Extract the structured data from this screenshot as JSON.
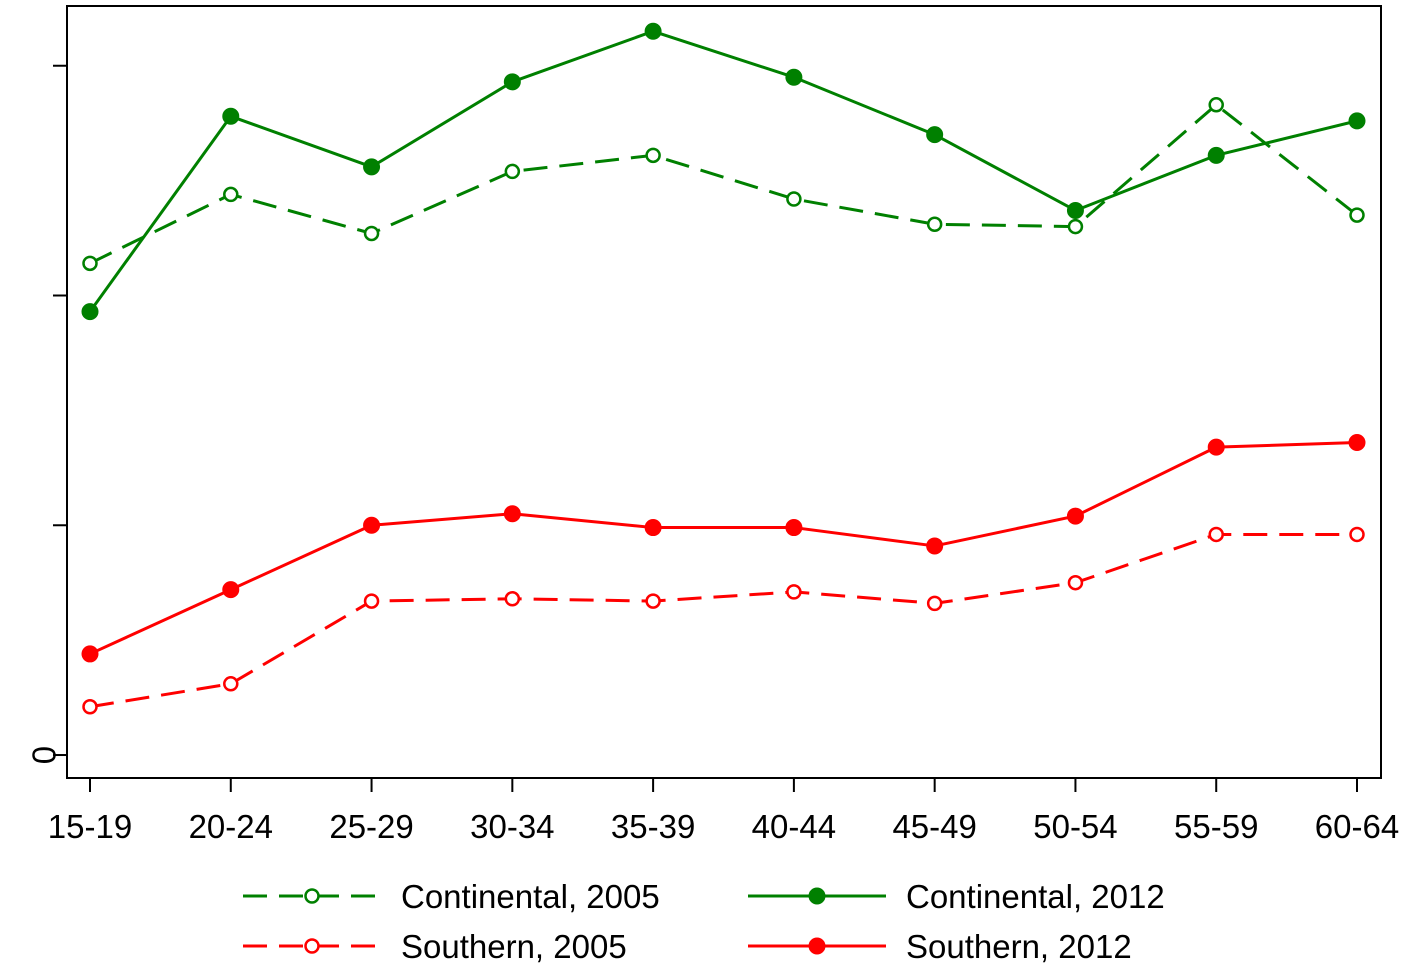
{
  "chart_data": {
    "type": "line",
    "categories": [
      "15-19",
      "20-24",
      "25-29",
      "30-34",
      "35-39",
      "40-44",
      "45-49",
      "50-54",
      "55-59",
      "60-64"
    ],
    "y_tick_labels": [
      {
        "value": 0,
        "label": "0"
      },
      {
        "value": 1,
        "label": ""
      },
      {
        "value": 2,
        "label": ""
      },
      {
        "value": 3,
        "label": ""
      }
    ],
    "ylim": [
      -0.1,
      3.26
    ],
    "grid": false,
    "legend_position": "bottom",
    "series": [
      {
        "name": "Continental, 2005",
        "color": "#008000",
        "dashed": true,
        "marker": "hollow-circle",
        "values": [
          2.14,
          2.44,
          2.27,
          2.54,
          2.61,
          2.42,
          2.31,
          2.3,
          2.83,
          2.35
        ]
      },
      {
        "name": "Continental, 2012",
        "color": "#008000",
        "dashed": false,
        "marker": "filled-circle",
        "values": [
          1.93,
          2.78,
          2.56,
          2.93,
          3.15,
          2.95,
          2.7,
          2.37,
          2.61,
          2.76
        ]
      },
      {
        "name": "Southern, 2005",
        "color": "#ff0000",
        "dashed": true,
        "marker": "hollow-circle",
        "values": [
          0.21,
          0.31,
          0.67,
          0.68,
          0.67,
          0.71,
          0.66,
          0.75,
          0.96,
          0.96
        ]
      },
      {
        "name": "Southern, 2012",
        "color": "#ff0000",
        "dashed": false,
        "marker": "filled-circle",
        "values": [
          0.44,
          0.72,
          1.0,
          1.05,
          0.99,
          0.99,
          0.91,
          1.04,
          1.34,
          1.36
        ]
      }
    ]
  }
}
